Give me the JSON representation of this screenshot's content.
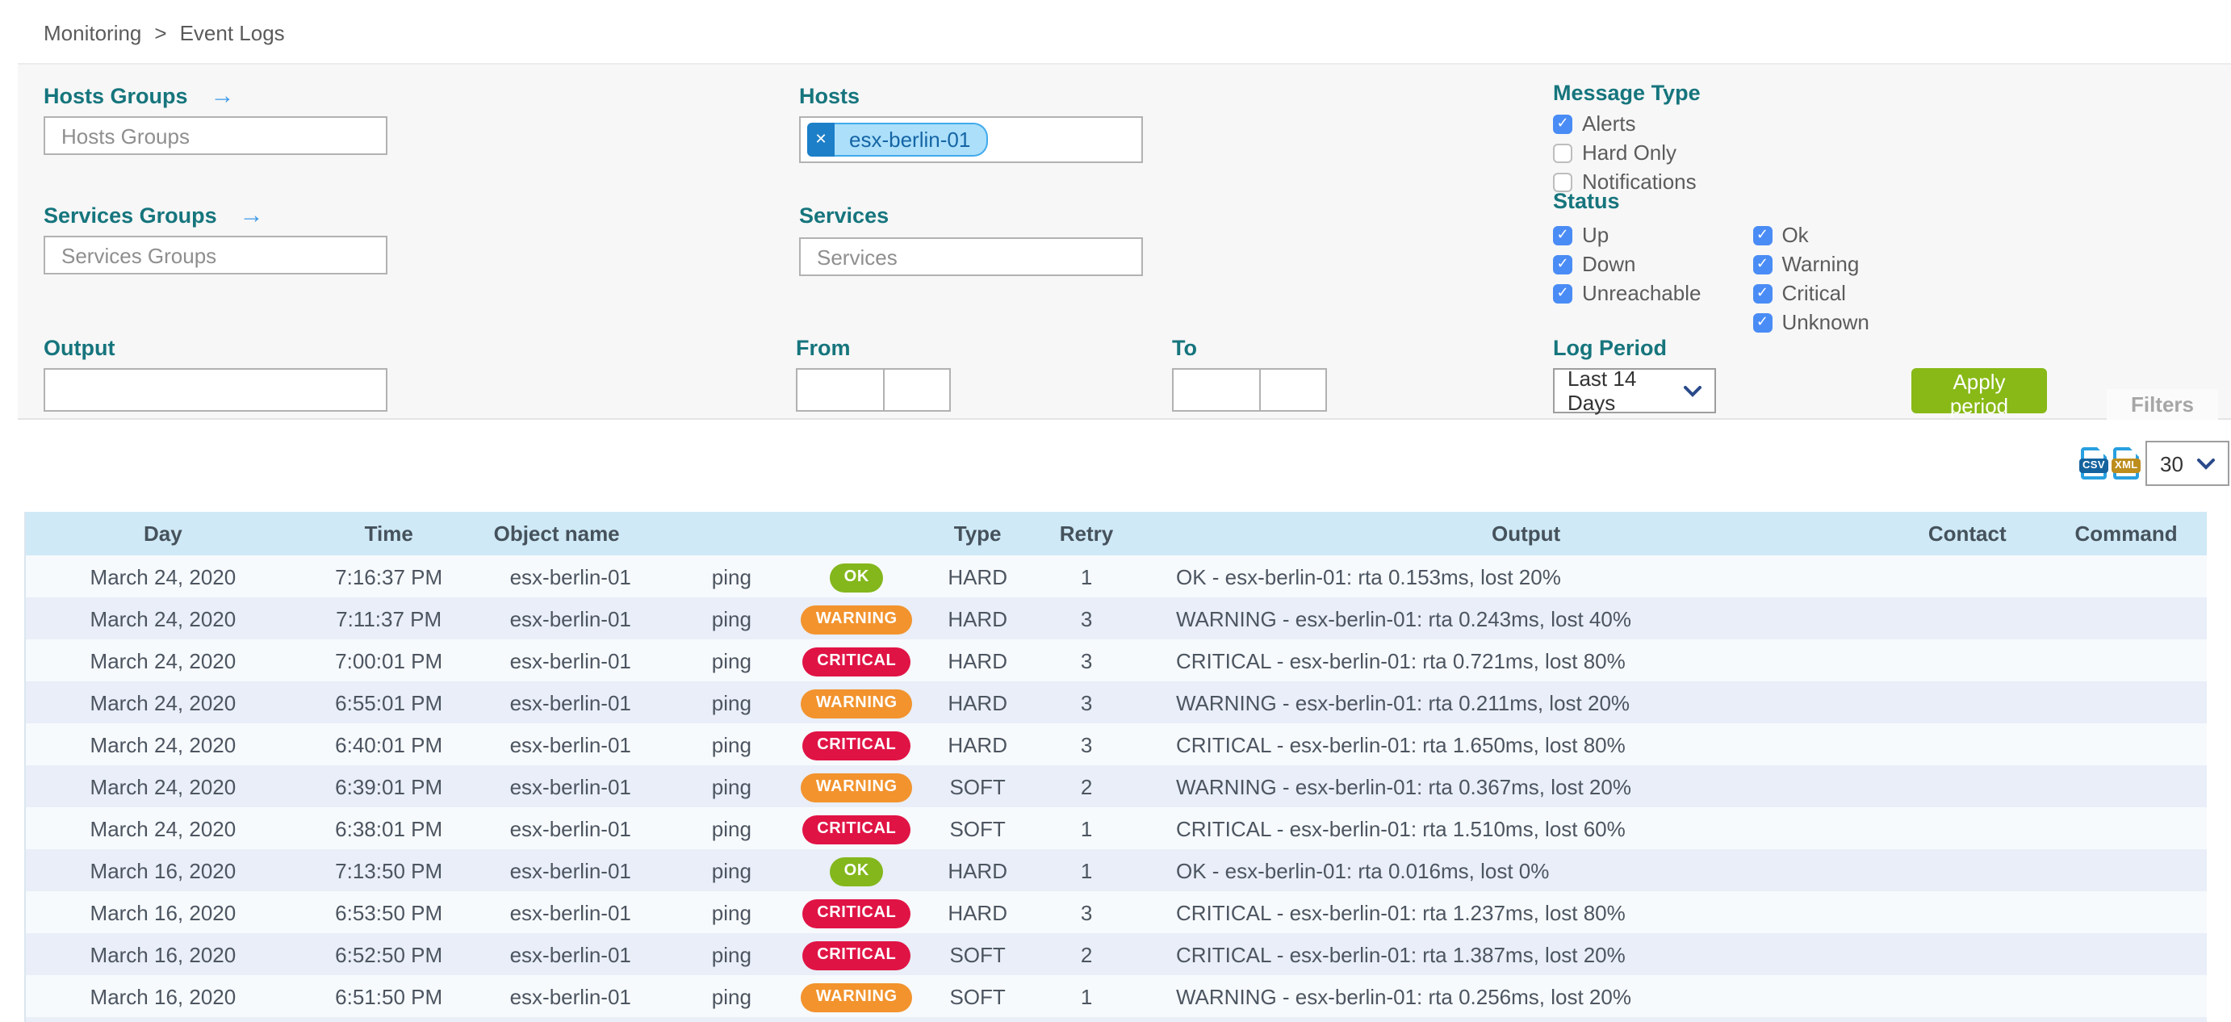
{
  "icons": {
    "arrow_right": "→",
    "close": "✕",
    "check": "✓"
  },
  "breadcrumb": {
    "items": [
      "Monitoring",
      "Event Logs"
    ],
    "separator": ">"
  },
  "filters": {
    "hosts_groups": {
      "label": "Hosts Groups",
      "placeholder": "Hosts Groups"
    },
    "services_groups": {
      "label": "Services Groups",
      "placeholder": "Services Groups"
    },
    "output": {
      "label": "Output",
      "value": ""
    },
    "hosts": {
      "label": "Hosts",
      "selected_tag": "esx-berlin-01"
    },
    "services": {
      "label": "Services",
      "placeholder": "Services"
    },
    "from": {
      "label": "From",
      "date": "",
      "time": ""
    },
    "to": {
      "label": "To",
      "date": "",
      "time": ""
    },
    "message_type": {
      "label": "Message Type",
      "options": [
        {
          "label": "Alerts",
          "checked": true
        },
        {
          "label": "Hard Only",
          "checked": false
        },
        {
          "label": "Notifications",
          "checked": false
        }
      ]
    },
    "status": {
      "label": "Status",
      "host_options": [
        {
          "label": "Up",
          "checked": true
        },
        {
          "label": "Down",
          "checked": true
        },
        {
          "label": "Unreachable",
          "checked": true
        }
      ],
      "service_options": [
        {
          "label": "Ok",
          "checked": true
        },
        {
          "label": "Warning",
          "checked": true
        },
        {
          "label": "Critical",
          "checked": true
        },
        {
          "label": "Unknown",
          "checked": true
        }
      ]
    },
    "log_period": {
      "label": "Log Period",
      "selected": "Last 14 Days"
    },
    "apply_button_label": "Apply period",
    "filters_tab_label": "Filters"
  },
  "toolbar": {
    "export": [
      "CSV",
      "XML"
    ],
    "page_size": "30"
  },
  "table": {
    "columns": {
      "day": "Day",
      "time": "Time",
      "object": "Object name",
      "type": "Type",
      "retry": "Retry",
      "output": "Output",
      "contact": "Contact",
      "command": "Command"
    },
    "rows": [
      {
        "day": "March 24, 2020",
        "time": "7:16:37 PM",
        "object": "esx-berlin-01",
        "service": "ping",
        "status": "OK",
        "type": "HARD",
        "retry": "1",
        "output": "OK - esx-berlin-01: rta 0.153ms, lost 20%",
        "contact": "",
        "command": ""
      },
      {
        "day": "March 24, 2020",
        "time": "7:11:37 PM",
        "object": "esx-berlin-01",
        "service": "ping",
        "status": "WARNING",
        "type": "HARD",
        "retry": "3",
        "output": "WARNING - esx-berlin-01: rta 0.243ms, lost 40%",
        "contact": "",
        "command": ""
      },
      {
        "day": "March 24, 2020",
        "time": "7:00:01 PM",
        "object": "esx-berlin-01",
        "service": "ping",
        "status": "CRITICAL",
        "type": "HARD",
        "retry": "3",
        "output": "CRITICAL - esx-berlin-01: rta 0.721ms, lost 80%",
        "contact": "",
        "command": ""
      },
      {
        "day": "March 24, 2020",
        "time": "6:55:01 PM",
        "object": "esx-berlin-01",
        "service": "ping",
        "status": "WARNING",
        "type": "HARD",
        "retry": "3",
        "output": "WARNING - esx-berlin-01: rta 0.211ms, lost 20%",
        "contact": "",
        "command": ""
      },
      {
        "day": "March 24, 2020",
        "time": "6:40:01 PM",
        "object": "esx-berlin-01",
        "service": "ping",
        "status": "CRITICAL",
        "type": "HARD",
        "retry": "3",
        "output": "CRITICAL - esx-berlin-01: rta 1.650ms, lost 80%",
        "contact": "",
        "command": ""
      },
      {
        "day": "March 24, 2020",
        "time": "6:39:01 PM",
        "object": "esx-berlin-01",
        "service": "ping",
        "status": "WARNING",
        "type": "SOFT",
        "retry": "2",
        "output": "WARNING - esx-berlin-01: rta 0.367ms, lost 20%",
        "contact": "",
        "command": ""
      },
      {
        "day": "March 24, 2020",
        "time": "6:38:01 PM",
        "object": "esx-berlin-01",
        "service": "ping",
        "status": "CRITICAL",
        "type": "SOFT",
        "retry": "1",
        "output": "CRITICAL - esx-berlin-01: rta 1.510ms, lost 60%",
        "contact": "",
        "command": ""
      },
      {
        "day": "March 16, 2020",
        "time": "7:13:50 PM",
        "object": "esx-berlin-01",
        "service": "ping",
        "status": "OK",
        "type": "HARD",
        "retry": "1",
        "output": "OK - esx-berlin-01: rta 0.016ms, lost 0%",
        "contact": "",
        "command": ""
      },
      {
        "day": "March 16, 2020",
        "time": "6:53:50 PM",
        "object": "esx-berlin-01",
        "service": "ping",
        "status": "CRITICAL",
        "type": "HARD",
        "retry": "3",
        "output": "CRITICAL - esx-berlin-01: rta 1.237ms, lost 80%",
        "contact": "",
        "command": ""
      },
      {
        "day": "March 16, 2020",
        "time": "6:52:50 PM",
        "object": "esx-berlin-01",
        "service": "ping",
        "status": "CRITICAL",
        "type": "SOFT",
        "retry": "2",
        "output": "CRITICAL - esx-berlin-01: rta 1.387ms, lost 20%",
        "contact": "",
        "command": ""
      },
      {
        "day": "March 16, 2020",
        "time": "6:51:50 PM",
        "object": "esx-berlin-01",
        "service": "ping",
        "status": "WARNING",
        "type": "SOFT",
        "retry": "1",
        "output": "WARNING - esx-berlin-01: rta 0.256ms, lost 20%",
        "contact": "",
        "command": ""
      }
    ]
  },
  "colors": {
    "accent_teal": "#16757d",
    "checkbox_blue": "#4a8cf5",
    "apply_green": "#88b917",
    "status_ok": "#83b71c",
    "status_warning": "#f2932d",
    "status_critical": "#e01345",
    "header_bg": "#cfe9f6",
    "row_odd": "#f7fafd",
    "row_even": "#e9eef8"
  }
}
